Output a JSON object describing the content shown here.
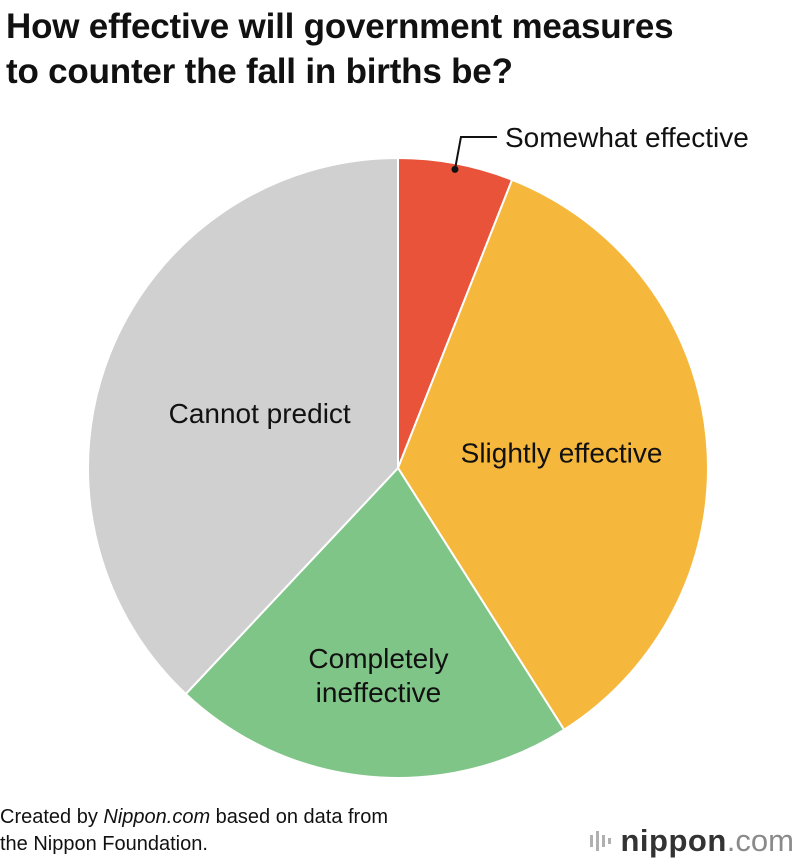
{
  "title": {
    "line1": "How effective will government measures",
    "line2": "to counter the fall in births be?"
  },
  "chart_data": {
    "type": "pie",
    "title": "How effective will government measures to counter the fall in births be?",
    "slices": [
      {
        "label": "Somewhat effective",
        "value": 6,
        "color": "#e8533a"
      },
      {
        "label": "Slightly effective",
        "value": 35,
        "color": "#f5b83d"
      },
      {
        "label": "Completely ineffective",
        "value": 21,
        "color": "#80c588"
      },
      {
        "label": "Cannot predict",
        "value": 38,
        "color": "#d0d0d0"
      }
    ],
    "start_angle_deg": 0,
    "direction": "clockwise",
    "unit": "%",
    "value_labels_shown": false
  },
  "footer": {
    "prefix": "Created by ",
    "source_italic": "Nippon.com",
    "suffix": " based on data from",
    "line2": "the Nippon Foundation."
  },
  "logo": {
    "word": "nippon",
    "dot": ".",
    "tld": "com"
  }
}
